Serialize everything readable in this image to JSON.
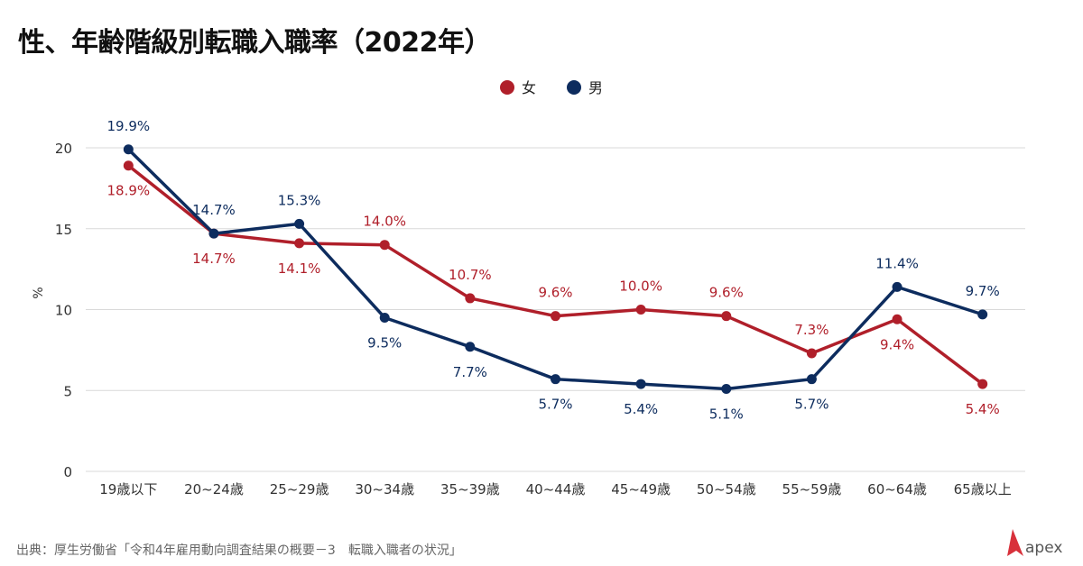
{
  "title": "性、年齢階級別転職入職率（2022年）",
  "source": "出典：厚生労働省「令和4年雇用動向調査結果の概要－3　転職入職者の状況」",
  "logo": "apex",
  "colors": {
    "female": "#b01f2a",
    "male": "#0d2c5e",
    "grid": "#d9d9d9"
  },
  "chart_data": {
    "type": "line",
    "title": "性、年齢階級別転職入職率（2022年）",
    "ylabel": "%",
    "xlabel": "",
    "ylim": [
      0,
      20
    ],
    "yticks": [
      0,
      5,
      10,
      15,
      20
    ],
    "grid": true,
    "legend_position": "top-center",
    "categories": [
      "19歳以下",
      "20~24歳",
      "25~29歳",
      "30~34歳",
      "35~39歳",
      "40~44歳",
      "45~49歳",
      "50~54歳",
      "55~59歳",
      "60~64歳",
      "65歳以上"
    ],
    "series": [
      {
        "name": "女",
        "values": [
          18.9,
          14.7,
          14.1,
          14.0,
          10.7,
          9.6,
          10.0,
          9.6,
          7.3,
          9.4,
          5.4
        ],
        "labels": [
          "18.9%",
          "14.7%",
          "14.1%",
          "14.0%",
          "10.7%",
          "9.6%",
          "10.0%",
          "9.6%",
          "7.3%",
          "9.4%",
          "5.4%"
        ],
        "label_side": [
          "below",
          "below",
          "below",
          "above",
          "above",
          "above",
          "above",
          "above",
          "above",
          "below",
          "below"
        ]
      },
      {
        "name": "男",
        "values": [
          19.9,
          14.7,
          15.3,
          9.5,
          7.7,
          5.7,
          5.4,
          5.1,
          5.7,
          11.4,
          9.7
        ],
        "labels": [
          "19.9%",
          "14.7%",
          "15.3%",
          "9.5%",
          "7.7%",
          "5.7%",
          "5.4%",
          "5.1%",
          "5.7%",
          "11.4%",
          "9.7%"
        ],
        "label_side": [
          "above",
          "above",
          "above",
          "below",
          "below",
          "below",
          "below",
          "below",
          "below",
          "above",
          "above"
        ]
      }
    ]
  }
}
